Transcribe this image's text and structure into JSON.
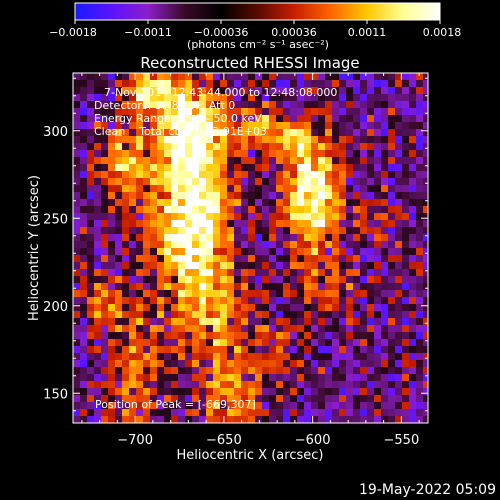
{
  "chart_data": {
    "type": "heatmap",
    "title": "Reconstructed RHESSI Image",
    "xlabel": "Heliocentric X (arcsec)",
    "ylabel": "Heliocentric Y (arcsec)",
    "xlim": [
      -735,
      -535
    ],
    "ylim": [
      133,
      333
    ],
    "x_ticks": [
      -700,
      -650,
      -600,
      -550
    ],
    "x_tick_labels": [
      "−700",
      "−650",
      "−600",
      "−550"
    ],
    "y_ticks": [
      150,
      200,
      250,
      300
    ],
    "y_tick_labels": [
      "150",
      "200",
      "250",
      "300"
    ],
    "colorbar": {
      "range": [
        -0.0018,
        0.0018
      ],
      "tick_labels": [
        "−0.0018",
        "−0.0011",
        "−0.00036",
        "0.00036",
        "0.0011",
        "0.0018"
      ],
      "unit_label": "(photons cm⁻² s⁻¹ asec⁻²)",
      "colormap": [
        "#1a1aff",
        "#5a14ff",
        "#8c1ec8",
        "#3a0a28",
        "#000000",
        "#5a0a00",
        "#c81e00",
        "#ff6400",
        "#ffc800",
        "#ffff96",
        "#ffffff"
      ]
    },
    "info_lines": [
      "7-Nov-2014 12:43:44.000 to 12:48:08.000",
      "Detectors: 3F 8F 9F, Att 0",
      "Energy Range: 25.0 - 50.0 keV",
      "Clean    Total counts: 3.91E+03"
    ],
    "peak_label": "Position of Peak = [-669,307]",
    "peak_position": [
      -669,
      307
    ],
    "timestamp": "19-May-2022 05:09"
  }
}
